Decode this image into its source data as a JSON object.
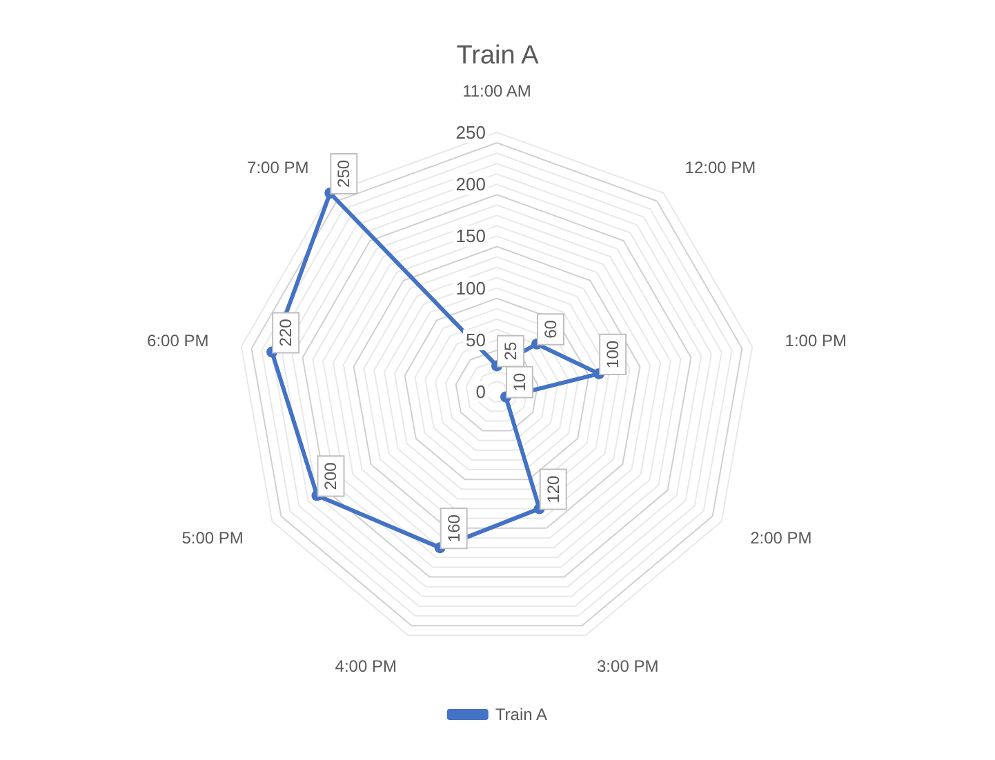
{
  "chart_data": {
    "type": "radar",
    "title": "Train A",
    "categories": [
      "11:00 AM",
      "12:00 PM",
      "1:00 PM",
      "2:00 PM",
      "3:00 PM",
      "4:00 PM",
      "5:00 PM",
      "6:00 PM",
      "7:00 PM"
    ],
    "series": [
      {
        "name": "Train A",
        "color": "#4472c4",
        "values": [
          25,
          60,
          100,
          10,
          120,
          160,
          200,
          220,
          250
        ]
      }
    ],
    "ylim": [
      0,
      250
    ],
    "yticks": [
      0,
      50,
      100,
      150,
      200,
      250
    ],
    "grid": true,
    "legend": "bottom",
    "marker": "circle",
    "line_style": "solid",
    "data_labels": true
  }
}
